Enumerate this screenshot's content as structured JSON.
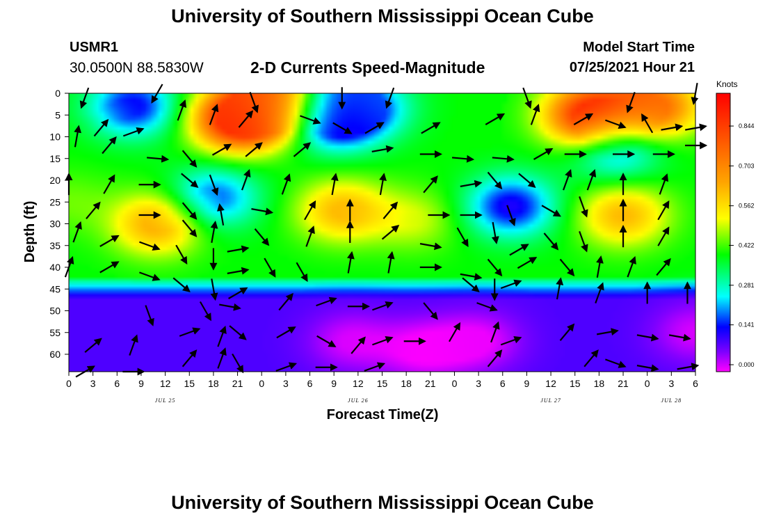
{
  "header": {
    "title": "University of Southern Mississippi Ocean Cube",
    "station_id": "USMR1",
    "station_coords": "30.0500N  88.5830W",
    "subtitle": "2-D Currents Speed-Magnitude",
    "model_label": "Model Start Time",
    "model_time": "07/25/2021 Hour 21"
  },
  "footer": {
    "title": "University of Southern Mississippi Ocean Cube"
  },
  "chart_data": {
    "type": "heatmap",
    "xlabel": "Forecast Time(Z)",
    "ylabel": "Depth (ft)",
    "x_ticks": [
      "0",
      "3",
      "6",
      "9",
      "12",
      "15",
      "18",
      "21",
      "0",
      "3",
      "6",
      "9",
      "12",
      "15",
      "18",
      "21",
      "0",
      "3",
      "6",
      "9",
      "12",
      "15",
      "18",
      "21",
      "0",
      "3",
      "6"
    ],
    "x_range_hours": [
      0,
      78
    ],
    "date_labels": [
      {
        "text": "JUL 25",
        "hour": 12
      },
      {
        "text": "JUL 26",
        "hour": 36
      },
      {
        "text": "JUL 27",
        "hour": 60
      },
      {
        "text": "JUL 28",
        "hour": 75
      }
    ],
    "y_ticks": [
      "0",
      "5",
      "10",
      "15",
      "20",
      "25",
      "30",
      "35",
      "40",
      "45",
      "50",
      "55",
      "60"
    ],
    "y_range_ft": [
      0,
      64
    ],
    "colorbar": {
      "units": "Knots",
      "ticks": [
        "0.000",
        "0.141",
        "0.281",
        "0.422",
        "0.562",
        "0.703",
        "0.844"
      ],
      "range": [
        0,
        0.95
      ]
    },
    "speed_blobs": [
      {
        "hour": 21,
        "depth": 6,
        "value": 0.9
      },
      {
        "hour": 25,
        "depth": 3,
        "value": 0.75
      },
      {
        "hour": 65,
        "depth": 5,
        "value": 0.92
      },
      {
        "hour": 73,
        "depth": 3,
        "value": 0.75
      },
      {
        "hour": 11,
        "depth": 30,
        "value": 0.65
      },
      {
        "hour": 34,
        "depth": 27,
        "value": 0.62
      },
      {
        "hour": 43,
        "depth": 29,
        "value": 0.5
      },
      {
        "hour": 69,
        "depth": 28,
        "value": 0.62
      },
      {
        "hour": 0,
        "depth": 25,
        "value": 0.45
      },
      {
        "hour": 0,
        "depth": 8,
        "value": 0.4
      },
      {
        "hour": 8,
        "depth": 3,
        "value": 0.14
      },
      {
        "hour": 33,
        "depth": 6,
        "value": 0.1
      },
      {
        "hour": 37,
        "depth": 3,
        "value": 0.2
      },
      {
        "hour": 18,
        "depth": 24,
        "value": 0.18
      },
      {
        "hour": 55,
        "depth": 26,
        "value": 0.13
      },
      {
        "hour": 68,
        "depth": 13,
        "value": 0.2
      },
      {
        "hour": 35,
        "depth": 57,
        "value": 0.02
      },
      {
        "hour": 44,
        "depth": 59,
        "value": 0.0
      },
      {
        "hour": 51,
        "depth": 57,
        "value": 0.01
      },
      {
        "hour": 78,
        "depth": 55,
        "value": 0.02
      }
    ],
    "vectors": [
      {
        "hour": 2,
        "depth": 1,
        "angle": 200
      },
      {
        "hour": 11,
        "depth": 0,
        "angle": 210
      },
      {
        "hour": 23,
        "depth": 2,
        "angle": 160
      },
      {
        "hour": 34,
        "depth": 1,
        "angle": 180
      },
      {
        "hour": 40,
        "depth": 1,
        "angle": 200
      },
      {
        "hour": 57,
        "depth": 1,
        "angle": 160
      },
      {
        "hour": 70,
        "depth": 2,
        "angle": 200
      },
      {
        "hour": 78,
        "depth": 0,
        "angle": 190
      },
      {
        "hour": 1,
        "depth": 10,
        "angle": 10
      },
      {
        "hour": 4,
        "depth": 8,
        "angle": 40
      },
      {
        "hour": 8,
        "depth": 9,
        "angle": 70
      },
      {
        "hour": 14,
        "depth": 4,
        "angle": 20
      },
      {
        "hour": 18,
        "depth": 5,
        "angle": 20
      },
      {
        "hour": 22,
        "depth": 6,
        "angle": 40
      },
      {
        "hour": 30,
        "depth": 6,
        "angle": 110
      },
      {
        "hour": 34,
        "depth": 8,
        "angle": 120
      },
      {
        "hour": 38,
        "depth": 8,
        "angle": 60
      },
      {
        "hour": 45,
        "depth": 8,
        "angle": 60
      },
      {
        "hour": 53,
        "depth": 6,
        "angle": 60
      },
      {
        "hour": 58,
        "depth": 5,
        "angle": 20
      },
      {
        "hour": 64,
        "depth": 6,
        "angle": 60
      },
      {
        "hour": 68,
        "depth": 7,
        "angle": 110
      },
      {
        "hour": 72,
        "depth": 7,
        "angle": 330
      },
      {
        "hour": 75,
        "depth": 8,
        "angle": 80
      },
      {
        "hour": 78,
        "depth": 8,
        "angle": 80
      },
      {
        "hour": 5,
        "depth": 12,
        "angle": 40
      },
      {
        "hour": 11,
        "depth": 15,
        "angle": 95
      },
      {
        "hour": 15,
        "depth": 15,
        "angle": 140
      },
      {
        "hour": 19,
        "depth": 13,
        "angle": 60
      },
      {
        "hour": 23,
        "depth": 13,
        "angle": 50
      },
      {
        "hour": 29,
        "depth": 13,
        "angle": 50
      },
      {
        "hour": 39,
        "depth": 13,
        "angle": 80
      },
      {
        "hour": 45,
        "depth": 14,
        "angle": 90
      },
      {
        "hour": 49,
        "depth": 15,
        "angle": 95
      },
      {
        "hour": 54,
        "depth": 15,
        "angle": 95
      },
      {
        "hour": 59,
        "depth": 14,
        "angle": 60
      },
      {
        "hour": 63,
        "depth": 14,
        "angle": 90
      },
      {
        "hour": 69,
        "depth": 14,
        "angle": 90
      },
      {
        "hour": 74,
        "depth": 14,
        "angle": 90
      },
      {
        "hour": 78,
        "depth": 12,
        "angle": 90
      },
      {
        "hour": 0,
        "depth": 21,
        "angle": 0
      },
      {
        "hour": 5,
        "depth": 21,
        "angle": 30
      },
      {
        "hour": 10,
        "depth": 21,
        "angle": 90
      },
      {
        "hour": 15,
        "depth": 20,
        "angle": 130
      },
      {
        "hour": 18,
        "depth": 21,
        "angle": 160
      },
      {
        "hour": 22,
        "depth": 20,
        "angle": 20
      },
      {
        "hour": 27,
        "depth": 21,
        "angle": 20
      },
      {
        "hour": 33,
        "depth": 21,
        "angle": 10
      },
      {
        "hour": 39,
        "depth": 21,
        "angle": 10
      },
      {
        "hour": 45,
        "depth": 21,
        "angle": 40
      },
      {
        "hour": 50,
        "depth": 21,
        "angle": 80
      },
      {
        "hour": 53,
        "depth": 20,
        "angle": 140
      },
      {
        "hour": 57,
        "depth": 20,
        "angle": 130
      },
      {
        "hour": 62,
        "depth": 20,
        "angle": 20
      },
      {
        "hour": 65,
        "depth": 20,
        "angle": 20
      },
      {
        "hour": 69,
        "depth": 21,
        "angle": 0
      },
      {
        "hour": 74,
        "depth": 21,
        "angle": 20
      },
      {
        "hour": 3,
        "depth": 27,
        "angle": 40
      },
      {
        "hour": 10,
        "depth": 28,
        "angle": 90
      },
      {
        "hour": 15,
        "depth": 27,
        "angle": 140
      },
      {
        "hour": 19,
        "depth": 28,
        "angle": 350
      },
      {
        "hour": 24,
        "depth": 27,
        "angle": 100
      },
      {
        "hour": 30,
        "depth": 27,
        "angle": 30
      },
      {
        "hour": 35,
        "depth": 27,
        "angle": 0
      },
      {
        "hour": 40,
        "depth": 27,
        "angle": 40
      },
      {
        "hour": 46,
        "depth": 28,
        "angle": 90
      },
      {
        "hour": 50,
        "depth": 28,
        "angle": 90
      },
      {
        "hour": 55,
        "depth": 28,
        "angle": 160
      },
      {
        "hour": 60,
        "depth": 27,
        "angle": 120
      },
      {
        "hour": 64,
        "depth": 26,
        "angle": 160
      },
      {
        "hour": 69,
        "depth": 27,
        "angle": 0
      },
      {
        "hour": 74,
        "depth": 27,
        "angle": 30
      },
      {
        "hour": 1,
        "depth": 32,
        "angle": 20
      },
      {
        "hour": 5,
        "depth": 34,
        "angle": 60
      },
      {
        "hour": 10,
        "depth": 35,
        "angle": 110
      },
      {
        "hour": 15,
        "depth": 31,
        "angle": 140
      },
      {
        "hour": 18,
        "depth": 32,
        "angle": 10
      },
      {
        "hour": 21,
        "depth": 36,
        "angle": 80
      },
      {
        "hour": 24,
        "depth": 33,
        "angle": 140
      },
      {
        "hour": 30,
        "depth": 33,
        "angle": 20
      },
      {
        "hour": 35,
        "depth": 32,
        "angle": 0
      },
      {
        "hour": 40,
        "depth": 32,
        "angle": 50
      },
      {
        "hour": 45,
        "depth": 35,
        "angle": 100
      },
      {
        "hour": 49,
        "depth": 33,
        "angle": 150
      },
      {
        "hour": 53,
        "depth": 32,
        "angle": 170
      },
      {
        "hour": 56,
        "depth": 36,
        "angle": 60
      },
      {
        "hour": 60,
        "depth": 34,
        "angle": 140
      },
      {
        "hour": 64,
        "depth": 34,
        "angle": 160
      },
      {
        "hour": 69,
        "depth": 33,
        "angle": 0
      },
      {
        "hour": 74,
        "depth": 33,
        "angle": 30
      },
      {
        "hour": 0,
        "depth": 40,
        "angle": 20
      },
      {
        "hour": 5,
        "depth": 40,
        "angle": 60
      },
      {
        "hour": 10,
        "depth": 42,
        "angle": 110
      },
      {
        "hour": 14,
        "depth": 37,
        "angle": 150
      },
      {
        "hour": 18,
        "depth": 38,
        "angle": 180
      },
      {
        "hour": 21,
        "depth": 41,
        "angle": 80
      },
      {
        "hour": 25,
        "depth": 40,
        "angle": 150
      },
      {
        "hour": 29,
        "depth": 41,
        "angle": 150
      },
      {
        "hour": 35,
        "depth": 39,
        "angle": 10
      },
      {
        "hour": 40,
        "depth": 39,
        "angle": 10
      },
      {
        "hour": 45,
        "depth": 40,
        "angle": 90
      },
      {
        "hour": 50,
        "depth": 42,
        "angle": 100
      },
      {
        "hour": 53,
        "depth": 40,
        "angle": 140
      },
      {
        "hour": 57,
        "depth": 39,
        "angle": 60
      },
      {
        "hour": 62,
        "depth": 40,
        "angle": 140
      },
      {
        "hour": 66,
        "depth": 40,
        "angle": 10
      },
      {
        "hour": 70,
        "depth": 40,
        "angle": 20
      },
      {
        "hour": 74,
        "depth": 40,
        "angle": 40
      },
      {
        "hour": 14,
        "depth": 44,
        "angle": 130
      },
      {
        "hour": 18,
        "depth": 45,
        "angle": 170
      },
      {
        "hour": 21,
        "depth": 46,
        "angle": 60
      },
      {
        "hour": 50,
        "depth": 44,
        "angle": 130
      },
      {
        "hour": 53,
        "depth": 45,
        "angle": 180
      },
      {
        "hour": 55,
        "depth": 44,
        "angle": 70
      },
      {
        "hour": 61,
        "depth": 45,
        "angle": 10
      },
      {
        "hour": 66,
        "depth": 46,
        "angle": 20
      },
      {
        "hour": 72,
        "depth": 46,
        "angle": 0
      },
      {
        "hour": 77,
        "depth": 46,
        "angle": 0
      },
      {
        "hour": 17,
        "depth": 50,
        "angle": 150
      },
      {
        "hour": 20,
        "depth": 49,
        "angle": 100
      },
      {
        "hour": 27,
        "depth": 48,
        "angle": 40
      },
      {
        "hour": 32,
        "depth": 48,
        "angle": 70
      },
      {
        "hour": 36,
        "depth": 49,
        "angle": 90
      },
      {
        "hour": 39,
        "depth": 49,
        "angle": 70
      },
      {
        "hour": 45,
        "depth": 50,
        "angle": 140
      },
      {
        "hour": 52,
        "depth": 49,
        "angle": 110
      },
      {
        "hour": 10,
        "depth": 51,
        "angle": 160
      },
      {
        "hour": 3,
        "depth": 58,
        "angle": 50
      },
      {
        "hour": 8,
        "depth": 58,
        "angle": 20
      },
      {
        "hour": 15,
        "depth": 55,
        "angle": 70
      },
      {
        "hour": 19,
        "depth": 56,
        "angle": 20
      },
      {
        "hour": 21,
        "depth": 55,
        "angle": 130
      },
      {
        "hour": 27,
        "depth": 55,
        "angle": 60
      },
      {
        "hour": 32,
        "depth": 57,
        "angle": 120
      },
      {
        "hour": 36,
        "depth": 58,
        "angle": 40
      },
      {
        "hour": 39,
        "depth": 57,
        "angle": 70
      },
      {
        "hour": 43,
        "depth": 57,
        "angle": 90
      },
      {
        "hour": 48,
        "depth": 55,
        "angle": 30
      },
      {
        "hour": 53,
        "depth": 55,
        "angle": 20
      },
      {
        "hour": 55,
        "depth": 57,
        "angle": 70
      },
      {
        "hour": 62,
        "depth": 55,
        "angle": 40
      },
      {
        "hour": 67,
        "depth": 55,
        "angle": 80
      },
      {
        "hour": 72,
        "depth": 56,
        "angle": 100
      },
      {
        "hour": 76,
        "depth": 56,
        "angle": 100
      },
      {
        "hour": 2,
        "depth": 64,
        "angle": 60
      },
      {
        "hour": 8,
        "depth": 64,
        "angle": 90
      },
      {
        "hour": 15,
        "depth": 61,
        "angle": 40
      },
      {
        "hour": 19,
        "depth": 61,
        "angle": 20
      },
      {
        "hour": 21,
        "depth": 62,
        "angle": 150
      },
      {
        "hour": 27,
        "depth": 63,
        "angle": 70
      },
      {
        "hour": 32,
        "depth": 63,
        "angle": 90
      },
      {
        "hour": 38,
        "depth": 63,
        "angle": 70
      },
      {
        "hour": 53,
        "depth": 61,
        "angle": 40
      },
      {
        "hour": 65,
        "depth": 61,
        "angle": 40
      },
      {
        "hour": 68,
        "depth": 62,
        "angle": 110
      },
      {
        "hour": 72,
        "depth": 63,
        "angle": 100
      },
      {
        "hour": 77,
        "depth": 63,
        "angle": 80
      }
    ]
  }
}
